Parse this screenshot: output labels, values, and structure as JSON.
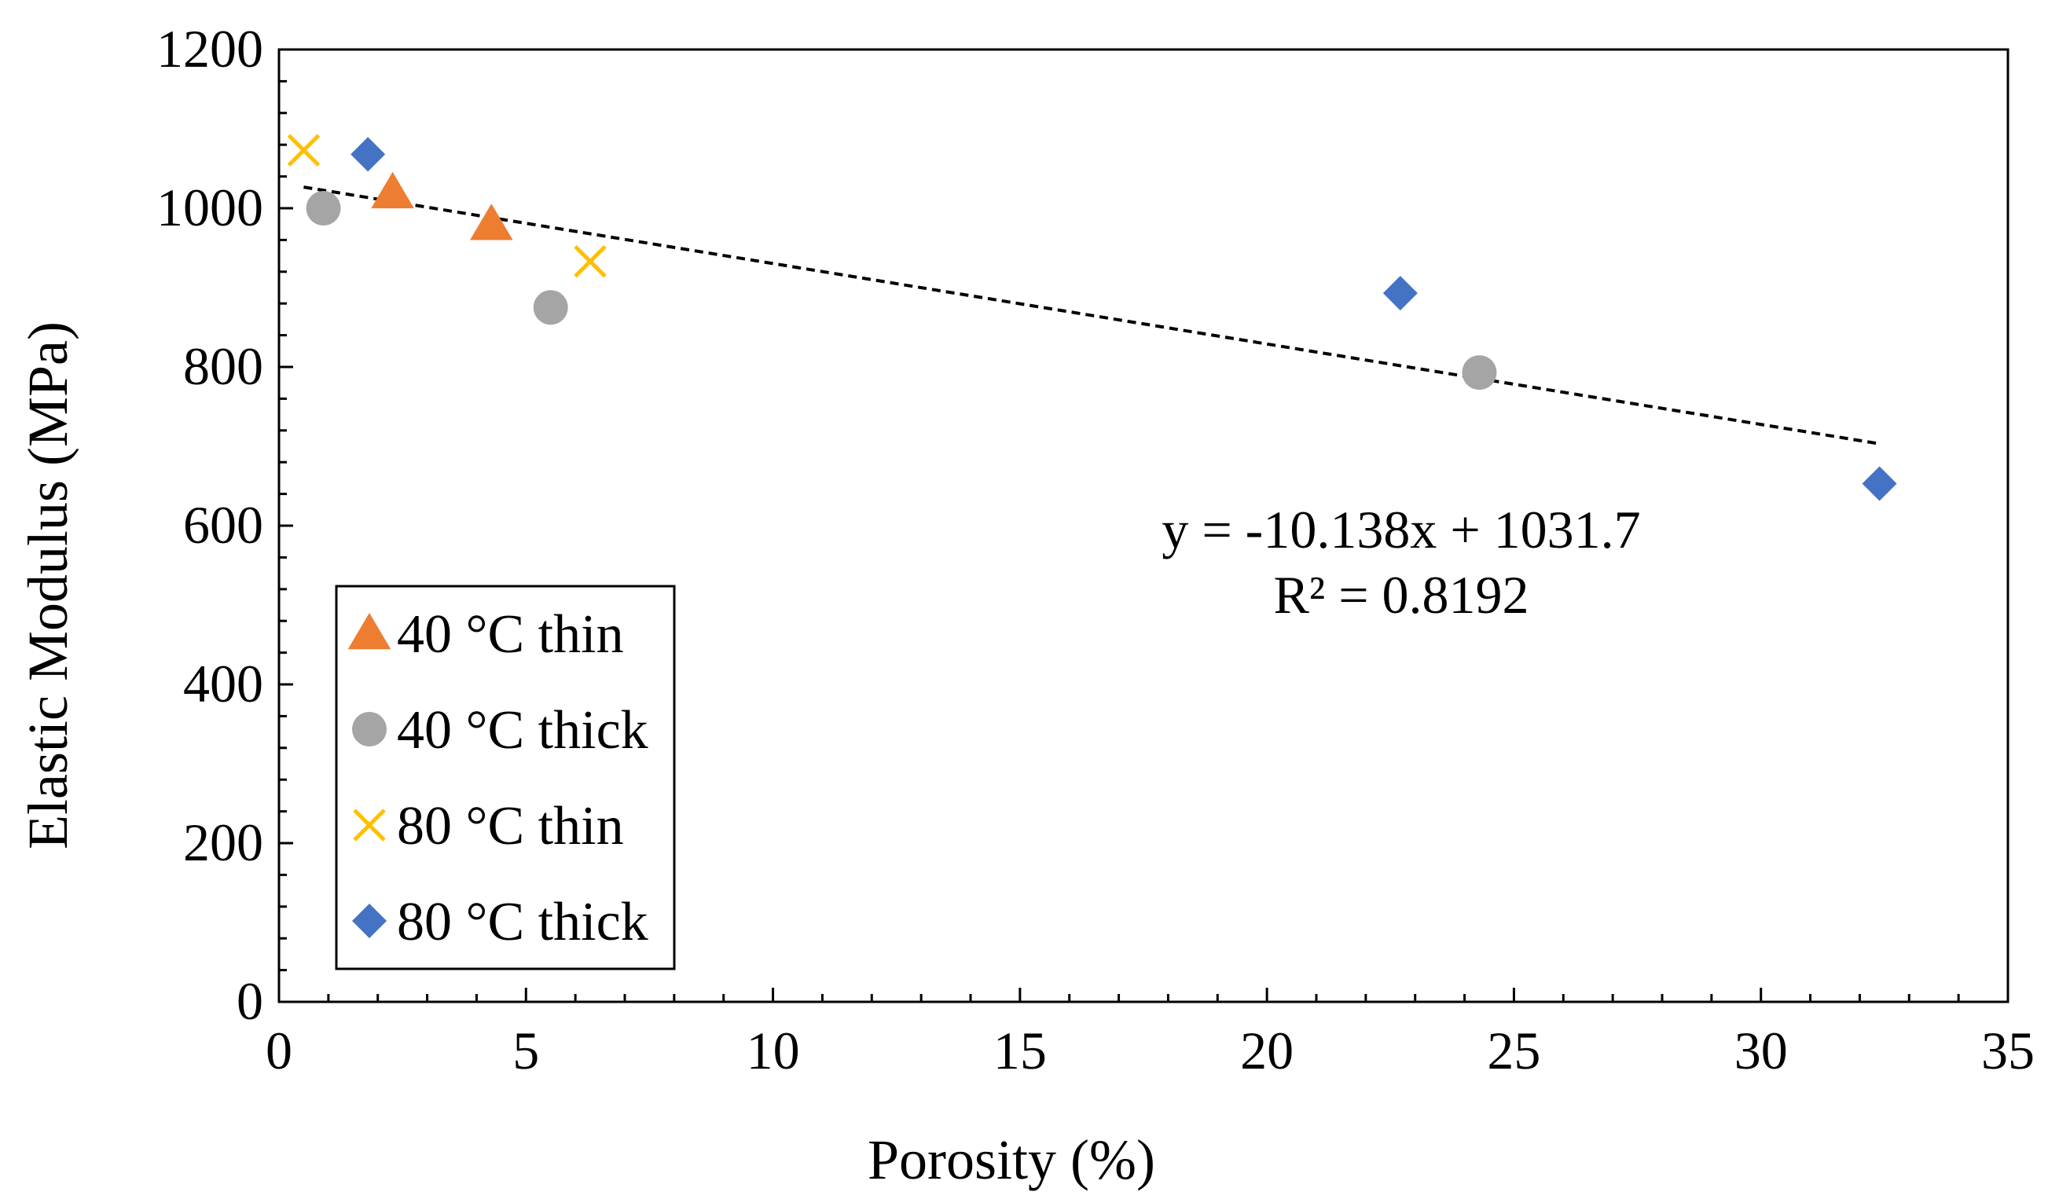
{
  "colors": {
    "orange": "#ED7D31",
    "gray": "#A5A5A5",
    "yellow": "#FFC000",
    "blue": "#4472C4",
    "black": "#000000",
    "white": "#FFFFFF"
  },
  "chart_data": {
    "type": "scatter",
    "title": "",
    "xlabel": "Porosity (%)",
    "ylabel": "Elastic Modulus (MPa)",
    "xlim": [
      0,
      35
    ],
    "ylim": [
      0,
      1200
    ],
    "xticks": [
      0,
      5,
      10,
      15,
      20,
      25,
      30,
      35
    ],
    "yticks": [
      0,
      200,
      400,
      600,
      800,
      1000,
      1200
    ],
    "x_minor_step": 1,
    "y_minor_step": 40,
    "grid": false,
    "legend_position": "bottom-left",
    "series": [
      {
        "name": "40 °C thin",
        "marker": "triangle",
        "color": "#ED7D31",
        "points": [
          {
            "x": 2.3,
            "y": 1020
          },
          {
            "x": 4.3,
            "y": 980
          }
        ]
      },
      {
        "name": "40 °C thick",
        "marker": "circle",
        "color": "#A5A5A5",
        "points": [
          {
            "x": 0.9,
            "y": 1000
          },
          {
            "x": 5.5,
            "y": 875
          },
          {
            "x": 24.3,
            "y": 793
          }
        ]
      },
      {
        "name": "80 °C thin",
        "marker": "x",
        "color": "#FFC000",
        "points": [
          {
            "x": 0.5,
            "y": 1073
          },
          {
            "x": 6.3,
            "y": 933
          }
        ]
      },
      {
        "name": "80 °C thick",
        "marker": "diamond",
        "color": "#4472C4",
        "points": [
          {
            "x": 1.8,
            "y": 1068
          },
          {
            "x": 22.7,
            "y": 893
          },
          {
            "x": 32.4,
            "y": 653
          }
        ]
      }
    ],
    "trendline": {
      "type": "linear",
      "style": "dashed",
      "slope": -10.138,
      "intercept": 1031.7,
      "x_range": [
        0.5,
        32.4
      ],
      "equation_label": "y = -10.138x + 1031.7",
      "r2_label": "R² = 0.8192"
    }
  }
}
